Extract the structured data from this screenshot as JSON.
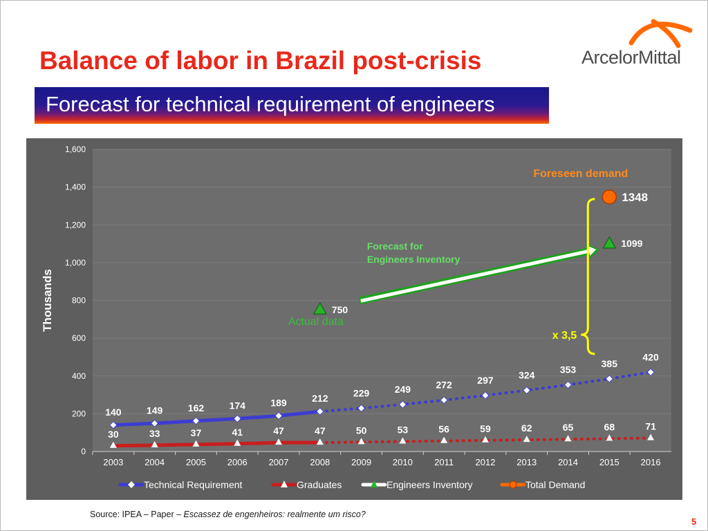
{
  "slide": {
    "title": "Balance of labor  in Brazil post-crisis",
    "subtitle": "Forecast for technical requirement of engineers",
    "logo_text": "ArcelorMittal",
    "source_prefix": "Source: IPEA – Paper – ",
    "source_title": "Escassez de engenheiros: realmente um risco?",
    "page_number": "5",
    "colors": {
      "title": "#e8281c",
      "banner_top": "#18188c",
      "banner_bottom": "#ff6a00",
      "chart_bg": "#5e5e5e",
      "plot_bg": "#6d6d6d"
    }
  },
  "chart_data": {
    "type": "line",
    "ylabel": "Thousands",
    "xlabel": "",
    "ylim": [
      0,
      1600
    ],
    "yticks": [
      0,
      200,
      400,
      600,
      800,
      1000,
      1200,
      1400,
      1600
    ],
    "ytick_labels": [
      "0",
      "200",
      "400",
      "600",
      "800",
      "1,000",
      "1,200",
      "1,400",
      "1,600"
    ],
    "categories": [
      "2003",
      "2004",
      "2005",
      "2006",
      "2007",
      "2008",
      "2009",
      "2010",
      "2011",
      "2012",
      "2013",
      "2014",
      "2015",
      "2016"
    ],
    "grid": true,
    "legend_position": "bottom",
    "series": [
      {
        "name": "Technical Requirement",
        "color": "#3c3cd2",
        "marker": "diamond",
        "actual_until": "2008",
        "values": [
          140,
          149,
          162,
          174,
          189,
          212,
          229,
          249,
          272,
          297,
          324,
          353,
          385,
          420
        ]
      },
      {
        "name": "Graduates",
        "color": "#c81e1e",
        "marker": "triangle",
        "actual_until": "2008",
        "values": [
          30,
          33,
          37,
          41,
          47,
          47,
          50,
          53,
          56,
          59,
          62,
          65,
          68,
          71
        ]
      },
      {
        "name": "Engineers Inventory",
        "color": "#ffffff",
        "marker": "triangle",
        "points": [
          {
            "x": "2008",
            "y": 750
          },
          {
            "x": "2015",
            "y": 1099
          }
        ]
      },
      {
        "name": "Total Demand",
        "color": "#ff6a00",
        "marker": "circle",
        "points": [
          {
            "x": "2015",
            "y": 1348
          }
        ]
      }
    ],
    "annotations": [
      {
        "text": "Foreseen demand",
        "color": "#ff8c1a"
      },
      {
        "text": "1348",
        "color": "#ffffff"
      },
      {
        "text": "1099",
        "color": "#ffffff"
      },
      {
        "text": "750",
        "color": "#ffffff"
      },
      {
        "text": "Actual data",
        "color": "#3cbf3c"
      },
      {
        "text": "Forecast  for",
        "color": "#66e066"
      },
      {
        "text": "Engineers Inventory",
        "color": "#66e066"
      },
      {
        "text": "x 3,5",
        "color": "#ffff00"
      }
    ]
  }
}
